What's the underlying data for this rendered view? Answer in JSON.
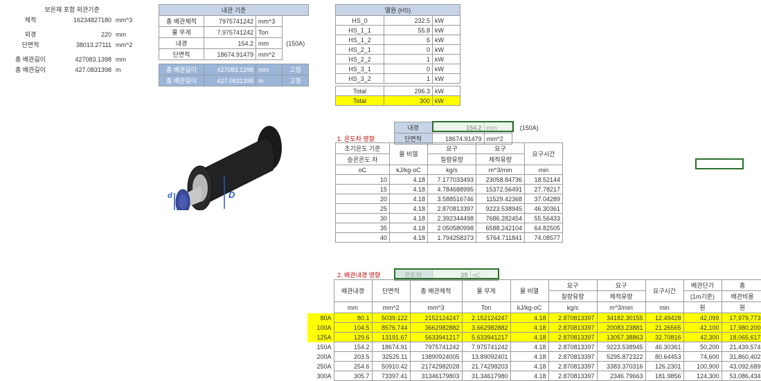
{
  "left": {
    "title": "보온재 포함 외관기준",
    "rows": [
      {
        "label": "체적",
        "value": "16234827180",
        "unit": "mm^3"
      },
      {
        "label": "외경",
        "value": "220",
        "unit": "mm"
      },
      {
        "label": "단면적",
        "value": "38013.27111",
        "unit": "mm^2"
      },
      {
        "label": "총 배관길이",
        "value": "427083.1398",
        "unit": "mm"
      },
      {
        "label": "총 배관길이",
        "value": "427.0831398",
        "unit": "m"
      }
    ]
  },
  "inner": {
    "title": "내관 기준",
    "rows": [
      {
        "label": "총 배관체적",
        "value": "7975741242",
        "unit": "mm^3",
        "note": ""
      },
      {
        "label": "물 무게",
        "value": "7.975741242",
        "unit": "Ton",
        "note": ""
      },
      {
        "label": "내경",
        "value": "154.2",
        "unit": "mm",
        "note": "(150A)"
      },
      {
        "label": "단면적",
        "value": "18674.91479",
        "unit": "mm^2",
        "note": ""
      }
    ],
    "sel": [
      {
        "label": "총 배관길이",
        "value": "427083.1398",
        "unit": "mm",
        "note": "고정"
      },
      {
        "label": "총 배관길이",
        "value": "427.0831398",
        "unit": "m",
        "note": "고정"
      }
    ]
  },
  "heat": {
    "title": "열원 (HS)",
    "rows": [
      {
        "label": "HS_0",
        "value": "232.5",
        "unit": "kW"
      },
      {
        "label": "HS_1_1",
        "value": "55.8",
        "unit": "kW"
      },
      {
        "label": "HS_1_2",
        "value": "6",
        "unit": "kW"
      },
      {
        "label": "HS_2_1",
        "value": "0",
        "unit": "kW"
      },
      {
        "label": "HS_2_2",
        "value": "1",
        "unit": "kW"
      },
      {
        "label": "HS_3_1",
        "value": "0",
        "unit": "kW"
      },
      {
        "label": "HS_3_2",
        "value": "1",
        "unit": "kW"
      }
    ],
    "total1": {
      "label": "Total",
      "value": "296.3",
      "unit": "kW"
    },
    "total2": {
      "label": "Total",
      "value": "300",
      "unit": "kW"
    }
  },
  "sec1": {
    "bar": {
      "l1": "내경",
      "v1": "154.2",
      "u1": "mm",
      "note": "(150A)"
    },
    "bar2": {
      "l1": "단면적",
      "v1": "18674.91479",
      "u1": "mm^2"
    },
    "title": "1. 온도차 영향",
    "head": {
      "c1a": "초기온도 기준",
      "c1b": "승온온도 차",
      "c2": "물 비열",
      "c3a": "요구",
      "c3b": "질량유량",
      "c4a": "요구",
      "c4b": "체적유량",
      "c5": "요구시간",
      "u1": "oC",
      "u2": "kJ/kg·oC",
      "u3": "kg/s",
      "u4": "m^3/min",
      "u5": "min"
    },
    "rows": [
      {
        "t": "10",
        "cp": "4.18",
        "mf": "7.177033493",
        "vf": "23058.84736",
        "tm": "18.52144"
      },
      {
        "t": "15",
        "cp": "4.18",
        "mf": "4.784688995",
        "vf": "15372.56491",
        "tm": "27.78217"
      },
      {
        "t": "20",
        "cp": "4.18",
        "mf": "3.588516746",
        "vf": "11529.42368",
        "tm": "37.04289"
      },
      {
        "t": "25",
        "cp": "4.18",
        "mf": "2.870813397",
        "vf": "9223.538945",
        "tm": "46.30361"
      },
      {
        "t": "30",
        "cp": "4.18",
        "mf": "2.392344498",
        "vf": "7686.282454",
        "tm": "55.56433"
      },
      {
        "t": "35",
        "cp": "4.18",
        "mf": "2.050580998",
        "vf": "6588.242104",
        "tm": "64.82505"
      },
      {
        "t": "40",
        "cp": "4.18",
        "mf": "1.794258373",
        "vf": "5764.711841",
        "tm": "74.08577"
      }
    ]
  },
  "sec2": {
    "title": "2. 배관내경 영향",
    "dT": {
      "label": "온도차",
      "value": "25",
      "unit": "oC"
    },
    "head": {
      "c1": "배관내경",
      "c2": "단면적",
      "c3": "총 배관체적",
      "c4": "물 무게",
      "c5": "물 비열",
      "c6a": "요구",
      "c6b": "질량유량",
      "c7a": "요구",
      "c7b": "체적유량",
      "c8": "요구시간",
      "c9a": "배관단가",
      "c9b": "(1m기준)",
      "c10a": "총",
      "c10b": "배관비용",
      "u1": "mm",
      "u2": "mm^2",
      "u3": "mm^3",
      "u4": "Ton",
      "u5": "kJ/kg·oC",
      "u6": "kg/s",
      "u7": "m^3/min",
      "u8": "min",
      "u9": "원",
      "u10": "원"
    },
    "rowLabels": [
      "80A",
      "100A",
      "125A",
      "150A",
      "200A",
      "250A",
      "300A"
    ],
    "rows": [
      {
        "d": "80.1",
        "a": "5039.122",
        "v": "2152124247",
        "w": "2.152124247",
        "cp": "4.18",
        "mf": "2.870813397",
        "vf": "34182.30155",
        "tm": "12.49428",
        "pr": "42,099",
        "tot": "17,979,773"
      },
      {
        "d": "104.5",
        "a": "8576.744",
        "v": "3662982882",
        "w": "3.662982882",
        "cp": "4.18",
        "mf": "2.870813397",
        "vf": "20083.23881",
        "tm": "21.26565",
        "pr": "42,100",
        "tot": "17,980,200"
      },
      {
        "d": "129.6",
        "a": "13191.67",
        "v": "5633941217",
        "w": "5.633941217",
        "cp": "4.18",
        "mf": "2.870813397",
        "vf": "13057.38863",
        "tm": "32.70816",
        "pr": "42,300",
        "tot": "18,065,617"
      },
      {
        "d": "154.2",
        "a": "18674.91",
        "v": "7975741242",
        "w": "7.975741242",
        "cp": "4.18",
        "mf": "2.870813397",
        "vf": "9223.538945",
        "tm": "46.30361",
        "pr": "50,200",
        "tot": "21,439,574"
      },
      {
        "d": "203.5",
        "a": "32525.11",
        "v": "13890924005",
        "w": "13.89092401",
        "cp": "4.18",
        "mf": "2.870813397",
        "vf": "5295.872322",
        "tm": "80.64453",
        "pr": "74,600",
        "tot": "31,860,402"
      },
      {
        "d": "254.6",
        "a": "50910.42",
        "v": "21742982028",
        "w": "21.74298203",
        "cp": "4.18",
        "mf": "2.870813397",
        "vf": "3383.370316",
        "tm": "126.2301",
        "pr": "100,900",
        "tot": "43,092,689"
      },
      {
        "d": "305.7",
        "a": "73397.41",
        "v": "31346179803",
        "w": "31.34617980",
        "cp": "4.18",
        "mf": "2.870813397",
        "vf": "2346.79663",
        "tm": "181.9856",
        "pr": "124,300",
        "tot": "53,086,434"
      }
    ]
  },
  "colors": {
    "headerBlue": "#c7d4e8",
    "selBlue": "#9bb5d9",
    "yellow": "#ffff00",
    "red": "#c00000",
    "selGreen": "#2a6f2a"
  }
}
